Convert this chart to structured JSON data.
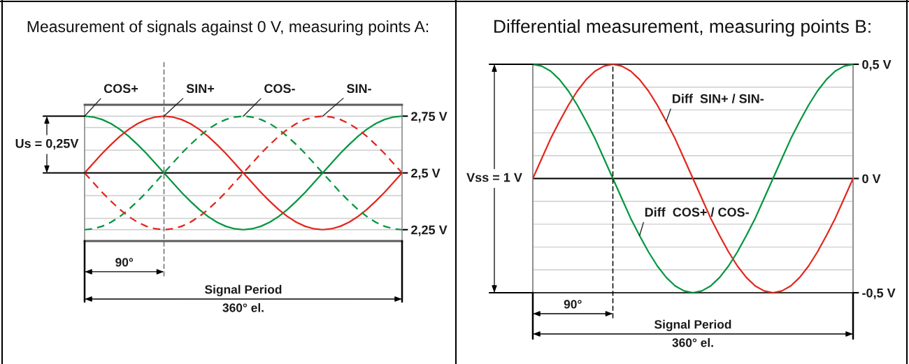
{
  "chart_data": [
    {
      "type": "line",
      "title": "Measurement of signals against 0 V, measuring points A:",
      "categories": [
        null,
        null,
        null,
        null,
        null,
        null,
        null,
        null,
        null,
        null,
        null,
        null,
        null,
        null,
        null,
        null,
        null,
        null,
        null,
        null,
        null,
        null,
        null,
        null,
        null,
        null,
        null,
        null,
        null,
        null,
        null,
        null,
        null,
        null,
        null,
        null,
        null
      ],
      "series": [
        {
          "name": "COS+",
          "color": "#00963f",
          "values": [
            2.75,
            2.746,
            2.735,
            2.717,
            2.692,
            2.661,
            2.625,
            2.586,
            2.543,
            2.5,
            2.457,
            2.414,
            2.375,
            2.339,
            2.308,
            2.283,
            2.265,
            2.254,
            2.25,
            2.254,
            2.265,
            2.283,
            2.308,
            2.339,
            2.375,
            2.414,
            2.457,
            2.5,
            2.543,
            2.586,
            2.625,
            2.661,
            2.692,
            2.717,
            2.735,
            2.746,
            2.75
          ]
        },
        {
          "name": "SIN+",
          "color": "#e3261c",
          "values": [
            2.5,
            2.543,
            2.586,
            2.625,
            2.661,
            2.692,
            2.717,
            2.735,
            2.746,
            2.75,
            2.746,
            2.735,
            2.717,
            2.692,
            2.661,
            2.625,
            2.586,
            2.543,
            2.5,
            2.457,
            2.414,
            2.375,
            2.339,
            2.308,
            2.283,
            2.265,
            2.254,
            2.25,
            2.254,
            2.265,
            2.283,
            2.308,
            2.339,
            2.375,
            2.414,
            2.457,
            2.5
          ]
        },
        {
          "name": "COS-",
          "color": "#00963f",
          "line_style": "dashed",
          "values": [
            2.25,
            2.254,
            2.265,
            2.283,
            2.308,
            2.339,
            2.375,
            2.414,
            2.457,
            2.5,
            2.543,
            2.586,
            2.625,
            2.661,
            2.692,
            2.717,
            2.735,
            2.746,
            2.75,
            2.746,
            2.735,
            2.717,
            2.692,
            2.661,
            2.625,
            2.586,
            2.543,
            2.5,
            2.457,
            2.414,
            2.375,
            2.339,
            2.308,
            2.283,
            2.265,
            2.254,
            2.25
          ]
        },
        {
          "name": "SIN-",
          "color": "#e3261c",
          "line_style": "dashed",
          "values": [
            2.5,
            2.457,
            2.414,
            2.375,
            2.339,
            2.308,
            2.283,
            2.265,
            2.254,
            2.25,
            2.254,
            2.265,
            2.283,
            2.308,
            2.339,
            2.375,
            2.414,
            2.457,
            2.5,
            2.543,
            2.586,
            2.625,
            2.661,
            2.692,
            2.717,
            2.735,
            2.746,
            2.75,
            2.746,
            2.735,
            2.717,
            2.692,
            2.661,
            2.625,
            2.586,
            2.543,
            2.5
          ]
        }
      ],
      "ylim": [
        2.2,
        2.8
      ],
      "yticks": [
        {
          "value": 2.25,
          "label": "2,25 V"
        },
        {
          "value": 2.3,
          "label": null
        },
        {
          "value": 2.4,
          "label": null
        },
        {
          "value": 2.5,
          "label": "2,5 V"
        },
        {
          "value": 2.6,
          "label": null
        },
        {
          "value": 2.7,
          "label": null
        },
        {
          "value": 2.75,
          "label": "2,75 V"
        }
      ],
      "grid": "y",
      "tick_labels": "y",
      "ref_lines": [
        {
          "axis": "y",
          "value": 2.5,
          "color": "#000000"
        }
      ],
      "annotations": [
        "Us = 0,25V",
        "90°",
        "Signal Period",
        "360° el."
      ]
    },
    {
      "type": "line",
      "title": "Differential measurement, measuring points B:",
      "categories": [
        null,
        null,
        null,
        null,
        null,
        null,
        null,
        null,
        null,
        null,
        null,
        null,
        null,
        null,
        null,
        null,
        null,
        null,
        null,
        null,
        null,
        null,
        null,
        null,
        null,
        null,
        null,
        null,
        null,
        null,
        null,
        null,
        null,
        null,
        null,
        null,
        null
      ],
      "series": [
        {
          "name": "Diff  SIN+ / SIN-",
          "color": "#e3261c",
          "values": [
            0,
            0.087,
            0.174,
            0.25,
            0.321,
            0.383,
            0.433,
            0.47,
            0.492,
            0.5,
            0.492,
            0.47,
            0.433,
            0.383,
            0.321,
            0.25,
            0.174,
            0.087,
            0,
            -0.087,
            -0.174,
            -0.25,
            -0.321,
            -0.383,
            -0.433,
            -0.47,
            -0.492,
            -0.5,
            -0.492,
            -0.47,
            -0.433,
            -0.383,
            -0.321,
            -0.25,
            -0.174,
            -0.087,
            0
          ]
        },
        {
          "name": "Diff  COS+ / COS-",
          "color": "#00963f",
          "values": [
            0.5,
            0.492,
            0.47,
            0.433,
            0.383,
            0.321,
            0.25,
            0.174,
            0.087,
            0,
            -0.087,
            -0.174,
            -0.25,
            -0.321,
            -0.383,
            -0.433,
            -0.47,
            -0.492,
            -0.5,
            -0.492,
            -0.47,
            -0.433,
            -0.383,
            -0.321,
            -0.25,
            -0.174,
            -0.087,
            0,
            0.087,
            0.174,
            0.25,
            0.321,
            0.383,
            0.433,
            0.47,
            0.492,
            0.5
          ]
        }
      ],
      "ylim": [
        -0.5,
        0.5
      ],
      "yticks": [
        {
          "value": -0.5,
          "label": "-0,5 V"
        },
        {
          "value": -0.4,
          "label": null
        },
        {
          "value": -0.3,
          "label": null
        },
        {
          "value": -0.2,
          "label": null
        },
        {
          "value": -0.1,
          "label": null
        },
        {
          "value": 0,
          "label": "0 V"
        },
        {
          "value": 0.1,
          "label": null
        },
        {
          "value": 0.2,
          "label": null
        },
        {
          "value": 0.3,
          "label": null
        },
        {
          "value": 0.4,
          "label": null
        },
        {
          "value": 0.5,
          "label": "0,5 V"
        }
      ],
      "grid": "y",
      "tick_labels": "y",
      "ref_lines": [
        {
          "axis": "y",
          "value": 0,
          "color": "#000000"
        }
      ],
      "annotations": [
        "Vss = 1 V",
        "90°",
        "Signal Period",
        "360° el."
      ]
    }
  ]
}
